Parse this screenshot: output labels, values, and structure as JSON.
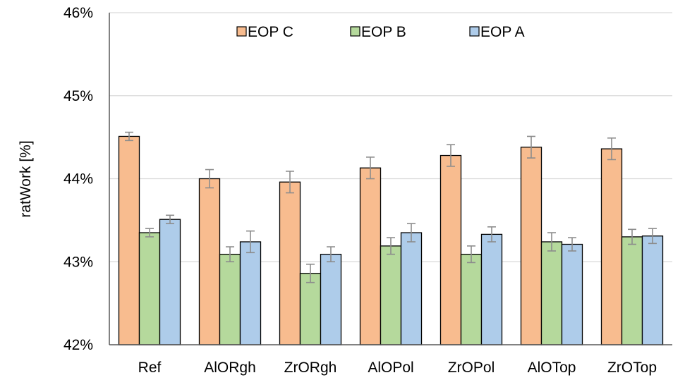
{
  "chart_data": {
    "type": "bar",
    "ylabel": "ratWork [%]",
    "ylim": [
      42,
      46
    ],
    "yticks": [
      42,
      43,
      44,
      45,
      46
    ],
    "ytick_labels": [
      "42%",
      "43%",
      "44%",
      "45%",
      "46%"
    ],
    "grid": true,
    "legend_position": "top-center",
    "categories": [
      "Ref",
      "AlORgh",
      "ZrORgh",
      "AlOPol",
      "ZrOPol",
      "AlOTop",
      "ZrOTop"
    ],
    "series": [
      {
        "name": "EOP C",
        "color": "#F8BC8F",
        "values": [
          44.51,
          44.0,
          43.96,
          44.13,
          44.28,
          44.38,
          44.36
        ],
        "errors": [
          0.05,
          0.11,
          0.13,
          0.13,
          0.13,
          0.13,
          0.13
        ]
      },
      {
        "name": "EOP B",
        "color": "#B5D99C",
        "values": [
          43.35,
          43.09,
          42.86,
          43.19,
          43.09,
          43.24,
          43.3
        ],
        "errors": [
          0.05,
          0.09,
          0.11,
          0.1,
          0.1,
          0.11,
          0.09
        ]
      },
      {
        "name": "EOP A",
        "color": "#AECCEA",
        "values": [
          43.51,
          43.24,
          43.09,
          43.35,
          43.33,
          43.21,
          43.31
        ],
        "errors": [
          0.05,
          0.13,
          0.09,
          0.11,
          0.09,
          0.08,
          0.09
        ]
      }
    ]
  }
}
